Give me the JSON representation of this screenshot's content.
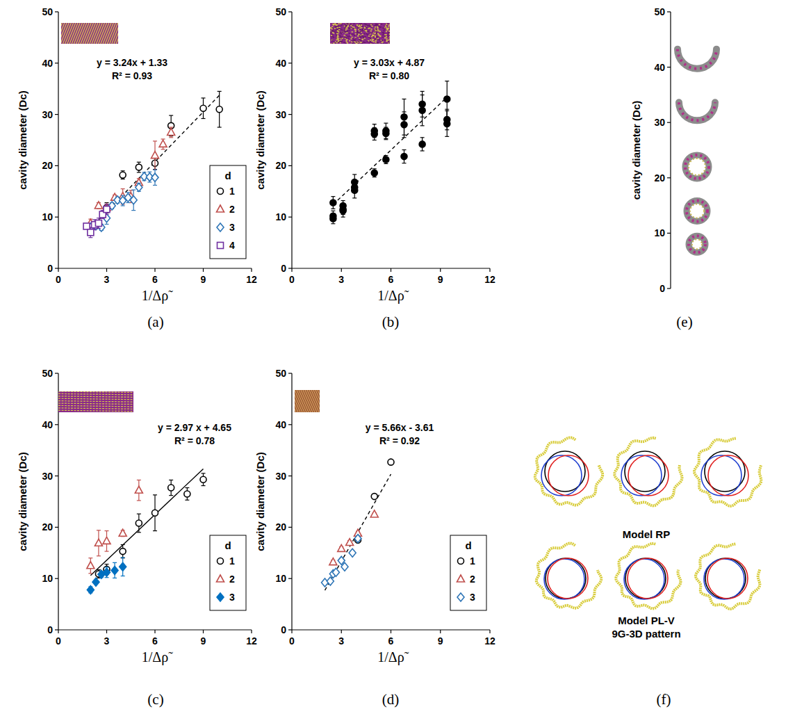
{
  "chart_data": [
    {
      "type": "scatter",
      "caption": "(a)",
      "x_label": "1/Δρ̃",
      "y_label": "cavity diameter (Dc)",
      "xlim": [
        0,
        12
      ],
      "xticks": [
        0,
        3,
        6,
        9,
        12
      ],
      "ylim": [
        0,
        50
      ],
      "yticks": [
        0,
        10,
        20,
        30,
        40,
        50
      ],
      "legend": "lower right",
      "legend_title": "d",
      "annotations": [
        "y = 3.24x + 1.33",
        "R² = 0.93"
      ],
      "fit": {
        "slope": 3.24,
        "intercept": 1.33,
        "x_range": [
          2,
          10
        ],
        "line_style": "dashed"
      },
      "series": [
        {
          "name": "1",
          "color": "#000000",
          "marker": "open-circle",
          "x": [
            2.5,
            3,
            4,
            5,
            6,
            7,
            9,
            10
          ],
          "values": [
            8.8,
            11.8,
            18.2,
            19.7,
            20.5,
            27.8,
            31.2,
            31
          ],
          "errors": [
            0.6,
            1,
            0.8,
            1,
            1.2,
            2,
            2,
            3.5
          ]
        },
        {
          "name": "2",
          "color": "#c0504d",
          "marker": "open-triangle",
          "x": [
            2,
            2.5,
            3,
            3.5,
            4,
            4.5,
            5,
            6,
            6.5,
            7
          ],
          "values": [
            8.8,
            12.2,
            11.8,
            13.8,
            14,
            14,
            16.7,
            22,
            24.2,
            26.5
          ],
          "errors": [
            0.8,
            0.6,
            0.7,
            0.5,
            1.5,
            1.2,
            0.8,
            2.8,
            1,
            1
          ]
        },
        {
          "name": "3",
          "color": "#2e75b6",
          "marker": "open-diamond",
          "x": [
            2,
            2.33,
            2.67,
            3,
            3.33,
            3.67,
            4,
            4.33,
            4.67,
            5,
            5.33,
            5.67,
            6
          ],
          "values": [
            8,
            8.3,
            8,
            9.8,
            12.2,
            13.3,
            13.2,
            13.8,
            13.3,
            15.8,
            17.9,
            17.8,
            17.7
          ],
          "errors": [
            0.5,
            0.6,
            0.6,
            1.2,
            0.6,
            0.6,
            1,
            1,
            2,
            0.8,
            0.8,
            1,
            1.5
          ]
        },
        {
          "name": "4",
          "color": "#7030a0",
          "marker": "open-square",
          "x": [
            1.75,
            2,
            2.25,
            2.5,
            2.75,
            3
          ],
          "values": [
            8.2,
            7,
            8.5,
            8.8,
            10.5,
            11.5
          ],
          "errors": [
            0.5,
            1,
            1,
            1,
            0.8,
            1
          ]
        }
      ]
    },
    {
      "type": "scatter",
      "caption": "(b)",
      "x_label": "1/Δρ̃",
      "y_label": "cavity diameter (Dc)",
      "xlim": [
        0,
        12
      ],
      "xticks": [
        0,
        3,
        6,
        9,
        12
      ],
      "ylim": [
        0,
        50
      ],
      "yticks": [
        0,
        10,
        20,
        30,
        40,
        50
      ],
      "annotations": [
        "y = 3.03x + 4.87",
        "R² = 0.80"
      ],
      "fit": {
        "slope": 3.03,
        "intercept": 4.87,
        "x_range": [
          2.5,
          9.4
        ],
        "line_style": "dashed"
      },
      "series": [
        {
          "color": "#000000",
          "marker": "filled-circle",
          "x": [
            2.5,
            2.5,
            2.5,
            3.1,
            3.1,
            3.1,
            3.8,
            3.8,
            3.8,
            5,
            5,
            5,
            5.7,
            5.7,
            5.7,
            6.8,
            6.8,
            6.8,
            7.9,
            7.9,
            7.9,
            9.4,
            9.4,
            9.4
          ],
          "values": [
            12.8,
            10.2,
            9.7,
            12.2,
            11.5,
            11.2,
            16.8,
            15.8,
            15.2,
            26.8,
            26.2,
            18.6,
            26.8,
            26.3,
            21.2,
            29.5,
            28,
            21.8,
            32,
            30.8,
            24.2,
            33,
            29,
            28.2
          ],
          "errors": [
            1.2,
            1,
            1,
            1,
            1,
            1.2,
            1.5,
            1,
            1.5,
            1.3,
            1.2,
            0.8,
            1.5,
            1.2,
            0.8,
            3.5,
            2.5,
            1.3,
            2.5,
            3,
            1.3,
            3.5,
            2,
            2.5
          ]
        }
      ]
    },
    {
      "type": "scatter",
      "caption": "(c)",
      "x_label": "1/Δρ̃",
      "y_label": "cavity diameter (Dc)",
      "xlim": [
        0,
        12
      ],
      "xticks": [
        0,
        3,
        6,
        9,
        12
      ],
      "ylim": [
        0,
        50
      ],
      "yticks": [
        0,
        10,
        20,
        30,
        40,
        50
      ],
      "legend": "lower right",
      "legend_title": "d",
      "annotations": [
        "y = 2.97 x + 4.65",
        "R² = 0.78"
      ],
      "fit": {
        "slope": 2.97,
        "intercept": 4.65,
        "x_range": [
          2,
          9
        ],
        "line_style": "solid"
      },
      "series": [
        {
          "name": "1",
          "color": "#000000",
          "marker": "open-circle",
          "x": [
            2.5,
            3,
            4,
            5,
            6,
            7,
            8,
            9
          ],
          "values": [
            10.9,
            11.8,
            15.3,
            20.8,
            22.8,
            27.7,
            26.5,
            29.3
          ],
          "errors": [
            0.8,
            1,
            1.3,
            1.8,
            3.5,
            1.5,
            1.2,
            1.2
          ]
        },
        {
          "name": "2",
          "color": "#c0504d",
          "marker": "open-triangle",
          "x": [
            2,
            2.5,
            3,
            4,
            5
          ],
          "values": [
            12.5,
            16.9,
            17.3,
            18.8,
            27.2
          ],
          "errors": [
            1.5,
            2.5,
            2,
            0.6,
            2
          ]
        },
        {
          "name": "3",
          "color": "#0070c0",
          "marker": "filled-diamond",
          "x": [
            2,
            2.33,
            2.67,
            3,
            3.5,
            4
          ],
          "values": [
            7.8,
            9.3,
            10.8,
            11.2,
            11.6,
            12.3
          ],
          "errors": [
            0.6,
            0.4,
            0.6,
            1,
            1.5,
            1.8
          ]
        }
      ]
    },
    {
      "type": "scatter",
      "caption": "(d)",
      "x_label": "1/Δρ̃",
      "y_label": "cavity diameter (Dc)",
      "xlim": [
        0,
        12
      ],
      "xticks": [
        0,
        3,
        6,
        9,
        12
      ],
      "ylim": [
        0,
        50
      ],
      "yticks": [
        0,
        10,
        20,
        30,
        40,
        50
      ],
      "legend": "lower right",
      "legend_title": "d",
      "annotations": [
        "y = 5.66x - 3.61",
        "R² = 0.92"
      ],
      "fit": {
        "slope": 5.66,
        "intercept": -3.61,
        "x_range": [
          2,
          6
        ],
        "line_style": "dashed"
      },
      "series": [
        {
          "name": "1",
          "color": "#000000",
          "marker": "open-circle",
          "x": [
            4,
            5,
            6
          ],
          "values": [
            17.5,
            26,
            32.7
          ],
          "errors": [
            0.4,
            0.3,
            0.3
          ]
        },
        {
          "name": "2",
          "color": "#c0504d",
          "marker": "open-triangle",
          "x": [
            2.5,
            3,
            3.5,
            4,
            5
          ],
          "values": [
            13.2,
            15.8,
            17,
            18.8,
            22.5
          ],
          "errors": [
            0.4,
            0.4,
            0.4,
            0.4,
            0.3
          ]
        },
        {
          "name": "3",
          "color": "#2e75b6",
          "marker": "open-diamond",
          "x": [
            2,
            2.33,
            2.5,
            2.67,
            3,
            3.2,
            3.67,
            4
          ],
          "values": [
            9.2,
            9.5,
            10.9,
            11.2,
            13.5,
            12.3,
            15,
            17.8
          ],
          "errors": [
            0.3,
            0.3,
            0.3,
            0.3,
            0.4,
            0.3,
            0.4,
            0.5
          ]
        }
      ]
    },
    {
      "type": "image_axis",
      "caption": "(e)",
      "y_label": "cavity diameter (Dc)",
      "ylim": [
        0,
        50
      ],
      "yticks": [
        0,
        10,
        20,
        30,
        40,
        50
      ],
      "values": [
        41.5,
        32,
        22,
        14,
        8
      ]
    }
  ],
  "panel_f": {
    "caption": "(f)",
    "labels": [
      "Model RP",
      "Model PL-V",
      "9G-3D pattern"
    ]
  }
}
